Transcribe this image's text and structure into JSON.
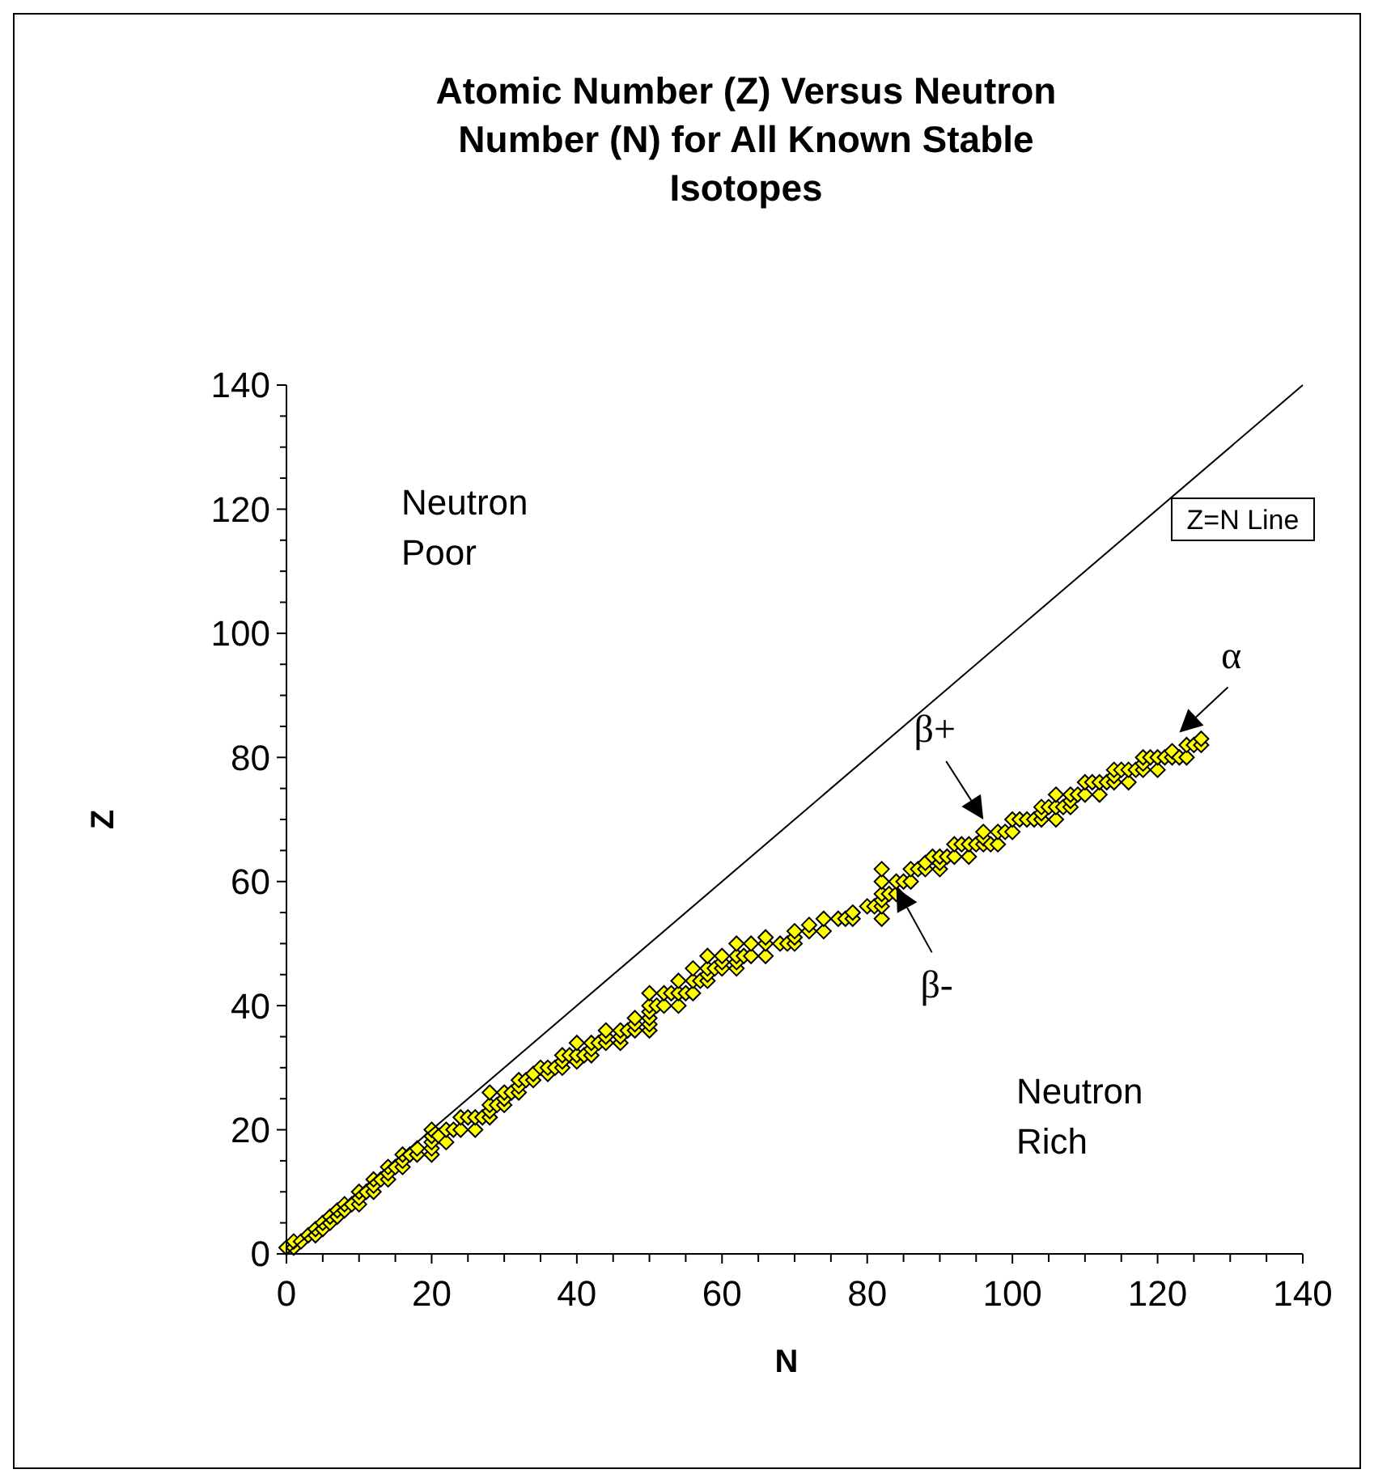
{
  "chart_data": {
    "type": "scatter",
    "title": "Atomic Number (Z) Versus Neutron Number (N) for All Known Stable Isotopes",
    "xlabel": "N",
    "ylabel": "Z",
    "xlim": [
      0,
      140
    ],
    "ylim": [
      0,
      140
    ],
    "xticks": [
      0,
      {
        "value": 5,
        "label": null
      },
      20,
      {
        "value": 10,
        "label": null
      },
      {
        "value": 15,
        "label": null
      },
      {
        "value": 25,
        "label": null
      },
      {
        "value": 30,
        "label": null
      },
      {
        "value": 35,
        "label": null
      },
      40,
      {
        "value": 45,
        "label": null
      },
      {
        "value": 50,
        "label": null
      },
      {
        "value": 55,
        "label": null
      },
      60,
      {
        "value": 65,
        "label": null
      },
      {
        "value": 70,
        "label": null
      },
      {
        "value": 75,
        "label": null
      },
      80,
      {
        "value": 85,
        "label": null
      },
      {
        "value": 90,
        "label": null
      },
      {
        "value": 95,
        "label": null
      },
      100,
      {
        "value": 105,
        "label": null
      },
      {
        "value": 110,
        "label": null
      },
      {
        "value": 115,
        "label": null
      },
      120,
      {
        "value": 125,
        "label": null
      },
      {
        "value": 130,
        "label": null
      },
      {
        "value": 135,
        "label": null
      },
      140
    ],
    "yticks": [
      0,
      {
        "value": 5,
        "label": null
      },
      {
        "value": 10,
        "label": null
      },
      {
        "value": 15,
        "label": null
      },
      20,
      {
        "value": 25,
        "label": null
      },
      {
        "value": 30,
        "label": null
      },
      {
        "value": 35,
        "label": null
      },
      40,
      {
        "value": 45,
        "label": null
      },
      {
        "value": 50,
        "label": null
      },
      {
        "value": 55,
        "label": null
      },
      60,
      {
        "value": 65,
        "label": null
      },
      {
        "value": 70,
        "label": null
      },
      {
        "value": 75,
        "label": null
      },
      80,
      {
        "value": 85,
        "label": null
      },
      {
        "value": 90,
        "label": null
      },
      {
        "value": 95,
        "label": null
      },
      100,
      {
        "value": 105,
        "label": null
      },
      {
        "value": 110,
        "label": null
      },
      {
        "value": 115,
        "label": null
      },
      120,
      {
        "value": 125,
        "label": null
      },
      {
        "value": 130,
        "label": null
      },
      {
        "value": 135,
        "label": null
      },
      140
    ],
    "grid": false,
    "legend": false,
    "series": [
      {
        "color": "#ffff00",
        "marker": "diamond",
        "x": [
          0,
          1,
          1,
          2,
          3,
          4,
          4,
          5,
          5,
          6,
          6,
          7,
          7,
          8,
          8,
          9,
          10,
          10,
          10,
          11,
          12,
          12,
          12,
          13,
          14,
          14,
          14,
          15,
          16,
          16,
          16,
          17,
          18,
          18,
          20,
          20,
          20,
          20,
          20,
          21,
          22,
          22,
          23,
          24,
          24,
          25,
          26,
          26,
          27,
          28,
          28,
          28,
          28,
          29,
          30,
          30,
          30,
          31,
          32,
          32,
          32,
          33,
          34,
          34,
          35,
          36,
          36,
          37,
          38,
          38,
          38,
          39,
          40,
          40,
          40,
          41,
          42,
          42,
          42,
          43,
          44,
          44,
          44,
          46,
          46,
          46,
          47,
          48,
          48,
          48,
          50,
          50,
          50,
          50,
          50,
          50,
          51,
          52,
          52,
          53,
          54,
          54,
          54,
          55,
          56,
          56,
          56,
          57,
          58,
          58,
          58,
          58,
          59,
          60,
          60,
          60,
          62,
          62,
          62,
          62,
          63,
          64,
          64,
          66,
          66,
          66,
          68,
          69,
          70,
          70,
          70,
          72,
          72,
          74,
          74,
          76,
          77,
          78,
          78,
          80,
          81,
          82,
          82,
          82,
          82,
          82,
          82,
          83,
          84,
          84,
          85,
          86,
          86,
          87,
          88,
          88,
          89,
          90,
          90,
          90,
          91,
          92,
          92,
          93,
          94,
          94,
          95,
          96,
          96,
          96,
          97,
          98,
          98,
          99,
          100,
          100,
          101,
          102,
          103,
          104,
          104,
          104,
          105,
          106,
          106,
          106,
          107,
          108,
          108,
          108,
          109,
          110,
          110,
          111,
          112,
          112,
          113,
          114,
          114,
          114,
          115,
          116,
          116,
          117,
          118,
          118,
          118,
          119,
          120,
          120,
          121,
          122,
          122,
          123,
          124,
          124,
          125,
          126,
          126
        ],
        "values": [
          1,
          1,
          2,
          2,
          3,
          3,
          4,
          4,
          5,
          5,
          6,
          6,
          7,
          7,
          8,
          8,
          8,
          9,
          10,
          10,
          10,
          11,
          12,
          12,
          12,
          13,
          14,
          14,
          14,
          15,
          16,
          16,
          16,
          17,
          16,
          17,
          18,
          19,
          20,
          19,
          18,
          20,
          20,
          20,
          22,
          22,
          20,
          22,
          22,
          22,
          23,
          24,
          26,
          24,
          24,
          25,
          26,
          26,
          26,
          27,
          28,
          28,
          28,
          29,
          30,
          29,
          30,
          30,
          30,
          31,
          32,
          32,
          31,
          32,
          34,
          32,
          32,
          33,
          34,
          34,
          34,
          35,
          36,
          34,
          35,
          36,
          36,
          36,
          37,
          38,
          36,
          37,
          38,
          39,
          40,
          42,
          40,
          40,
          42,
          42,
          40,
          42,
          44,
          42,
          42,
          44,
          46,
          44,
          44,
          45,
          46,
          48,
          46,
          46,
          47,
          48,
          46,
          47,
          48,
          50,
          48,
          48,
          50,
          48,
          50,
          51,
          50,
          50,
          50,
          51,
          52,
          52,
          53,
          52,
          54,
          54,
          54,
          54,
          55,
          56,
          56,
          54,
          56,
          57,
          58,
          60,
          62,
          58,
          58,
          60,
          60,
          60,
          62,
          62,
          62,
          63,
          64,
          62,
          63,
          64,
          64,
          64,
          66,
          66,
          64,
          66,
          66,
          66,
          67,
          68,
          66,
          66,
          68,
          68,
          68,
          70,
          70,
          70,
          70,
          70,
          71,
          72,
          72,
          70,
          72,
          74,
          72,
          72,
          73,
          74,
          74,
          74,
          76,
          76,
          74,
          76,
          76,
          76,
          77,
          78,
          78,
          76,
          78,
          78,
          78,
          79,
          80,
          80,
          78,
          80,
          80,
          80,
          81,
          80,
          80,
          82,
          82,
          82,
          83
        ]
      },
      {
        "type": "line",
        "name": "Z=N Line",
        "color": "#000000",
        "marker": "none",
        "x": [
          0,
          140
        ],
        "values": [
          0,
          140
        ]
      }
    ],
    "annotations": [
      "Neutron\nPoor",
      "Neutron\nRich",
      {
        "text": "β+",
        "x": 96,
        "y": 70
      },
      {
        "text": "β-",
        "x": 84,
        "y": 59
      },
      {
        "text": "α",
        "x": 123,
        "y": 84
      }
    ]
  }
}
